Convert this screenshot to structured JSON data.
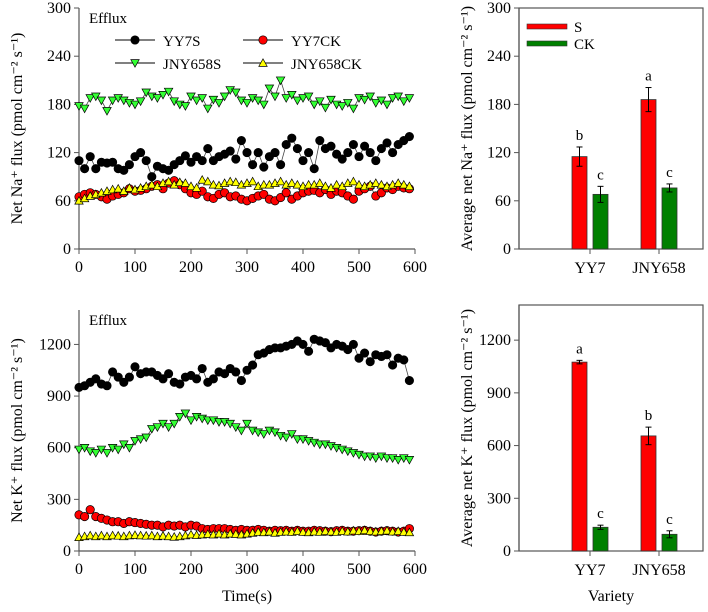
{
  "chart_data": [
    {
      "type": "scatter",
      "panel": "na-time",
      "annotation": "Efflux",
      "xlabel": "",
      "ylabel": "Net Na⁺ flux (pmol cm⁻² s⁻¹)",
      "xlim": [
        0,
        600
      ],
      "ylim": [
        0,
        300
      ],
      "xticks": [
        0,
        100,
        200,
        300,
        400,
        500,
        600
      ],
      "yticks": [
        0,
        60,
        120,
        180,
        240,
        300
      ],
      "x_start": 0,
      "x_step": 10,
      "legend": "top",
      "series": [
        {
          "name": "YY7S",
          "marker": "circle",
          "color": "#000000",
          "values": [
            110,
            100,
            115,
            100,
            108,
            107,
            108,
            100,
            98,
            105,
            115,
            120,
            110,
            90,
            103,
            100,
            98,
            105,
            110,
            116,
            108,
            115,
            110,
            125,
            110,
            115,
            118,
            122,
            112,
            135,
            120,
            105,
            120,
            102,
            115,
            120,
            105,
            130,
            138,
            125,
            110,
            120,
            100,
            135,
            125,
            128,
            118,
            112,
            120,
            130,
            115,
            128,
            120,
            110,
            125,
            132,
            120,
            130,
            135,
            140
          ]
        },
        {
          "name": "YY7CK",
          "marker": "circle",
          "color": "#ff0000",
          "values": [
            65,
            68,
            70,
            68,
            65,
            62,
            66,
            68,
            70,
            75,
            72,
            73,
            75,
            78,
            80,
            75,
            82,
            85,
            80,
            75,
            70,
            68,
            72,
            65,
            63,
            68,
            70,
            65,
            66,
            62,
            60,
            63,
            66,
            68,
            62,
            60,
            64,
            70,
            62,
            66,
            70,
            72,
            73,
            70,
            74,
            68,
            72,
            70,
            66,
            62,
            72,
            75,
            78,
            66,
            70,
            76,
            74,
            78,
            76,
            75
          ]
        },
        {
          "name": "JNY658S",
          "marker": "triangle-down",
          "color": "#33ff33",
          "values": [
            178,
            175,
            188,
            190,
            185,
            172,
            185,
            188,
            185,
            182,
            180,
            184,
            195,
            190,
            188,
            192,
            196,
            184,
            180,
            178,
            190,
            185,
            188,
            175,
            186,
            182,
            190,
            198,
            195,
            185,
            182,
            188,
            185,
            180,
            200,
            190,
            210,
            188,
            192,
            185,
            188,
            190,
            180,
            184,
            176,
            186,
            180,
            178,
            182,
            175,
            188,
            186,
            190,
            182,
            185,
            180,
            188,
            190,
            184,
            188
          ]
        },
        {
          "name": "JNY658CK",
          "marker": "triangle-up",
          "color": "#ffff00",
          "values": [
            60,
            63,
            66,
            68,
            70,
            72,
            74,
            75,
            72,
            76,
            74,
            76,
            78,
            80,
            78,
            82,
            84,
            80,
            83,
            82,
            78,
            76,
            86,
            84,
            80,
            79,
            82,
            84,
            83,
            80,
            82,
            84,
            78,
            80,
            80,
            82,
            84,
            80,
            82,
            80,
            78,
            80,
            80,
            82,
            78,
            76,
            80,
            78,
            82,
            84,
            80,
            78,
            80,
            82,
            80,
            78,
            80,
            82,
            80,
            78
          ]
        }
      ]
    },
    {
      "type": "bar",
      "panel": "na-average",
      "ylabel": "Average net Na⁺ flux (pmol cm⁻² s⁻¹)",
      "xlabel": "",
      "ylim": [
        0,
        300
      ],
      "yticks": [
        0,
        60,
        120,
        180,
        240,
        300
      ],
      "categories": [
        "YY7",
        "JNY658"
      ],
      "legend": "top-left",
      "series": [
        {
          "name": "S",
          "color": "#ff0000",
          "values": [
            115,
            186
          ],
          "errors": [
            12,
            15
          ],
          "letters": [
            "b",
            "a"
          ]
        },
        {
          "name": "CK",
          "color": "#008000",
          "values": [
            68,
            76
          ],
          "errors": [
            10,
            5
          ],
          "letters": [
            "c",
            "c"
          ]
        }
      ]
    },
    {
      "type": "scatter",
      "panel": "k-time",
      "annotation": "Efflux",
      "xlabel": "Time(s)",
      "ylabel": "Net K⁺ flux (pmol cm⁻² s⁻¹)",
      "xlim": [
        0,
        600
      ],
      "ylim": [
        0,
        1400
      ],
      "xticks": [
        0,
        100,
        200,
        300,
        400,
        500,
        600
      ],
      "yticks": [
        0,
        300,
        600,
        900,
        1200
      ],
      "x_start": 0,
      "x_step": 10,
      "series": [
        {
          "name": "YY7S",
          "marker": "circle",
          "color": "#000000",
          "values": [
            950,
            960,
            980,
            1000,
            970,
            960,
            1040,
            1010,
            980,
            1010,
            1070,
            1030,
            1040,
            1040,
            1020,
            1000,
            1030,
            980,
            970,
            1010,
            1020,
            1000,
            1060,
            980,
            1000,
            1040,
            1030,
            1060,
            1040,
            990,
            1050,
            1080,
            1140,
            1150,
            1170,
            1180,
            1180,
            1190,
            1200,
            1220,
            1200,
            1160,
            1230,
            1220,
            1210,
            1180,
            1200,
            1190,
            1170,
            1200,
            1120,
            1150,
            1100,
            1140,
            1130,
            1140,
            1080,
            1120,
            1110,
            990
          ]
        },
        {
          "name": "YY7CK",
          "marker": "circle",
          "color": "#ff0000",
          "values": [
            210,
            200,
            240,
            200,
            190,
            180,
            170,
            170,
            160,
            170,
            165,
            160,
            155,
            150,
            150,
            140,
            150,
            145,
            150,
            140,
            150,
            145,
            130,
            125,
            130,
            130,
            130,
            125,
            120,
            125,
            120,
            120,
            125,
            120,
            115,
            120,
            118,
            120,
            115,
            120,
            115,
            115,
            120,
            118,
            115,
            112,
            118,
            120,
            115,
            115,
            118,
            120,
            115,
            110,
            115,
            118,
            115,
            110,
            115,
            130
          ]
        },
        {
          "name": "JNY658S",
          "marker": "triangle-down",
          "color": "#33ff33",
          "values": [
            590,
            600,
            580,
            570,
            590,
            570,
            600,
            590,
            620,
            600,
            640,
            650,
            660,
            710,
            720,
            740,
            720,
            740,
            780,
            800,
            760,
            780,
            770,
            760,
            760,
            750,
            750,
            740,
            720,
            700,
            740,
            700,
            690,
            680,
            700,
            690,
            670,
            660,
            680,
            650,
            650,
            640,
            630,
            620,
            620,
            610,
            600,
            590,
            580,
            570,
            560,
            550,
            550,
            540,
            550,
            540,
            540,
            530,
            540,
            530
          ]
        },
        {
          "name": "JNY658CK",
          "marker": "triangle-up",
          "color": "#ffff00",
          "values": [
            80,
            85,
            90,
            85,
            90,
            85,
            90,
            88,
            85,
            90,
            92,
            90,
            88,
            90,
            85,
            88,
            85,
            82,
            85,
            90,
            95,
            92,
            95,
            98,
            95,
            100,
            95,
            100,
            98,
            95,
            100,
            105,
            110,
            108,
            112,
            105,
            110,
            112,
            110,
            115,
            110,
            108,
            112,
            110,
            115,
            112,
            110,
            115,
            112,
            118,
            115,
            120,
            115,
            112,
            115,
            118,
            112,
            115,
            110,
            108
          ]
        }
      ]
    },
    {
      "type": "bar",
      "panel": "k-average",
      "ylabel": "Average net K⁺ flux (pmol cm⁻² s⁻¹)",
      "xlabel": "Variety",
      "ylim": [
        0,
        1400
      ],
      "yticks": [
        0,
        300,
        600,
        900,
        1200
      ],
      "categories": [
        "YY7",
        "JNY658"
      ],
      "series": [
        {
          "name": "S",
          "color": "#ff0000",
          "values": [
            1075,
            655
          ],
          "errors": [
            10,
            50
          ],
          "letters": [
            "a",
            "b"
          ]
        },
        {
          "name": "CK",
          "color": "#008000",
          "values": [
            135,
            95
          ],
          "errors": [
            12,
            20
          ],
          "letters": [
            "c",
            "c"
          ]
        }
      ]
    }
  ]
}
